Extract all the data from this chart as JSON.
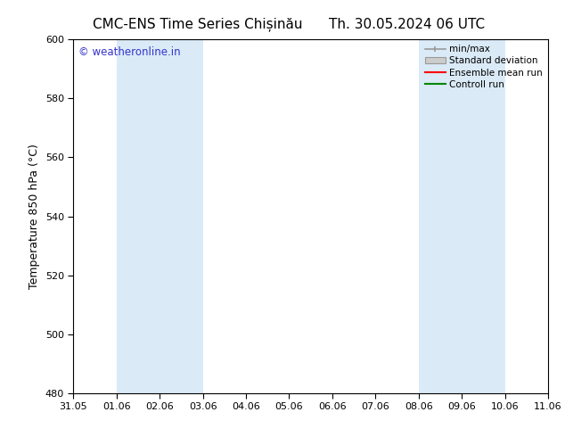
{
  "title_left": "CMC-ENS Time Series Chișinău",
  "title_right": "Th. 30.05.2024 06 UTC",
  "ylabel": "Temperature 850 hPa (°C)",
  "ylim": [
    480,
    600
  ],
  "yticks": [
    480,
    500,
    520,
    540,
    560,
    580,
    600
  ],
  "xtick_labels": [
    "31.05",
    "01.06",
    "02.06",
    "03.06",
    "04.06",
    "05.06",
    "06.06",
    "07.06",
    "08.06",
    "09.06",
    "10.06",
    "11.06"
  ],
  "xlim": [
    0,
    11
  ],
  "shaded_bands": [
    {
      "x_start": 1,
      "x_end": 2,
      "color": "#daeaf7"
    },
    {
      "x_start": 2,
      "x_end": 3,
      "color": "#daeaf7"
    },
    {
      "x_start": 8,
      "x_end": 9,
      "color": "#daeaf7"
    },
    {
      "x_start": 9,
      "x_end": 10,
      "color": "#daeaf7"
    }
  ],
  "watermark_text": "© weatheronline.in",
  "watermark_color": "#3333cc",
  "legend_entries": [
    "min/max",
    "Standard deviation",
    "Ensemble mean run",
    "Controll run"
  ],
  "legend_line_colors": [
    "#999999",
    "#bbbbbb",
    "#ff0000",
    "#008800"
  ],
  "bg_color": "#ffffff",
  "title_fontsize": 11,
  "label_fontsize": 9,
  "tick_fontsize": 8
}
